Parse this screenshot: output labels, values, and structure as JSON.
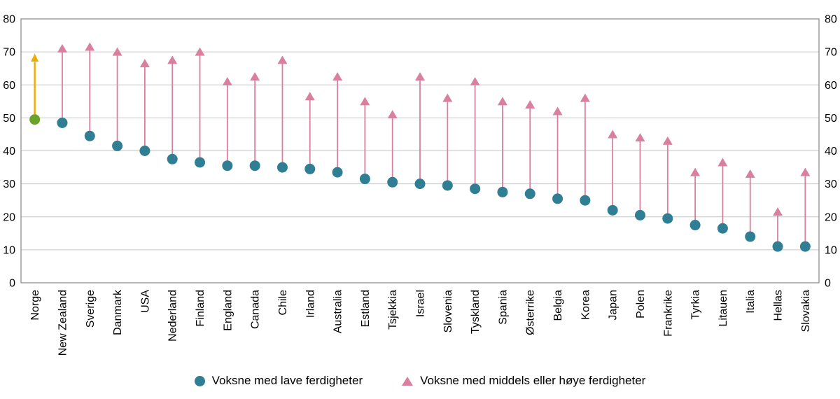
{
  "chart_data": {
    "type": "scatter",
    "title": "",
    "xlabel": "",
    "ylabel": "",
    "ylim": [
      0,
      80
    ],
    "yticks": [
      0,
      10,
      20,
      30,
      40,
      50,
      60,
      70,
      80
    ],
    "grid": true,
    "legend_position": "bottom",
    "categories": [
      "Norge",
      "New Zealand",
      "Sverige",
      "Danmark",
      "USA",
      "Nederland",
      "Finland",
      "England",
      "Canada",
      "Chile",
      "Irland",
      "Australia",
      "Estland",
      "Tsjekkia",
      "Israel",
      "Slovenia",
      "Tyskland",
      "Spania",
      "Østerrike",
      "Belgia",
      "Korea",
      "Japan",
      "Polen",
      "Frankrike",
      "Tyrkia",
      "Litauen",
      "Italia",
      "Hellas",
      "Slovakia"
    ],
    "series": [
      {
        "name": "Voksne med lave ferdigheter",
        "marker": "circle",
        "values": [
          49.5,
          48.5,
          44.5,
          41.5,
          40,
          37.5,
          36.5,
          35.5,
          35.5,
          35,
          34.5,
          33.5,
          31.5,
          30.5,
          30,
          29.5,
          28.5,
          27.5,
          27,
          25.5,
          25,
          22,
          20.5,
          19.5,
          17.5,
          16.5,
          14,
          11,
          11
        ]
      },
      {
        "name": "Voksne med middels eller høye ferdigheter",
        "marker": "triangle-up",
        "values": [
          68,
          71,
          71.5,
          70,
          66.5,
          67.5,
          70,
          61,
          62.5,
          67.5,
          56.5,
          62.5,
          55,
          51,
          62.5,
          56,
          61,
          55,
          54,
          52,
          56,
          45,
          44,
          43,
          33.5,
          36.5,
          33,
          21.5,
          33.5
        ]
      }
    ],
    "highlight": {
      "category": "Norge",
      "circle_color": "#6ba32a",
      "arrow_color": "#f0ab00"
    },
    "colors": {
      "circle": "#2f7e93",
      "triangle": "#d9809f",
      "grid": "#c6c6c6",
      "axis": "#8f8f8f",
      "text": "#000000"
    }
  }
}
